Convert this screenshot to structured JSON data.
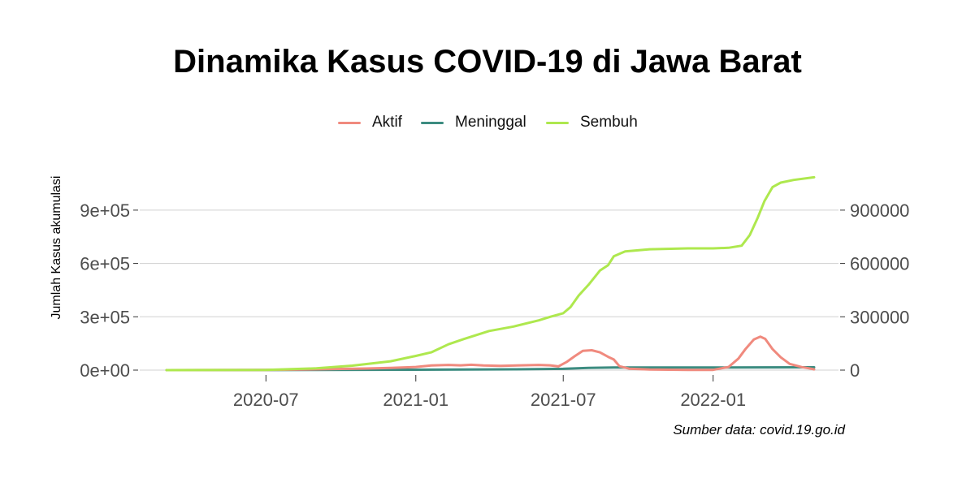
{
  "chart_data": {
    "type": "line",
    "title": "Dinamika Kasus COVID-19 di Jawa Barat",
    "ylabel": "Jumlah Kasus akumulasi",
    "caption": "Sumber data: covid.19.go.id",
    "x_ticks": [
      "2020-07",
      "2021-01",
      "2021-07",
      "2022-01"
    ],
    "x_range": [
      "2020-03-01",
      "2022-05-05"
    ],
    "y_left_ticks": [
      "0e+00",
      "3e+05",
      "6e+05",
      "9e+05"
    ],
    "y_right_ticks": [
      "0",
      "300000",
      "600000",
      "900000"
    ],
    "y_range": [
      0,
      1000000
    ],
    "grid": "horizontal",
    "legend_position": "top",
    "series": [
      {
        "name": "Aktif",
        "color": "#F08A7E",
        "points": [
          [
            "2020-03-01",
            0
          ],
          [
            "2020-07-01",
            1200
          ],
          [
            "2020-09-01",
            4500
          ],
          [
            "2020-11-01",
            9000
          ],
          [
            "2020-12-01",
            13000
          ],
          [
            "2021-01-01",
            18000
          ],
          [
            "2021-01-20",
            26000
          ],
          [
            "2021-02-10",
            29000
          ],
          [
            "2021-02-25",
            27000
          ],
          [
            "2021-03-10",
            30000
          ],
          [
            "2021-03-25",
            26000
          ],
          [
            "2021-04-15",
            24000
          ],
          [
            "2021-05-10",
            27000
          ],
          [
            "2021-06-01",
            29000
          ],
          [
            "2021-06-15",
            27000
          ],
          [
            "2021-06-25",
            21000
          ],
          [
            "2021-07-05",
            45000
          ],
          [
            "2021-07-15",
            78000
          ],
          [
            "2021-07-25",
            108000
          ],
          [
            "2021-08-05",
            112000
          ],
          [
            "2021-08-15",
            100000
          ],
          [
            "2021-08-25",
            75000
          ],
          [
            "2021-09-01",
            60000
          ],
          [
            "2021-09-08",
            22000
          ],
          [
            "2021-09-20",
            8000
          ],
          [
            "2021-10-15",
            3500
          ],
          [
            "2021-12-01",
            1500
          ],
          [
            "2022-01-01",
            1500
          ],
          [
            "2022-01-20",
            18000
          ],
          [
            "2022-02-01",
            65000
          ],
          [
            "2022-02-10",
            120000
          ],
          [
            "2022-02-20",
            172000
          ],
          [
            "2022-02-28",
            188000
          ],
          [
            "2022-03-06",
            176000
          ],
          [
            "2022-03-15",
            118000
          ],
          [
            "2022-03-25",
            72000
          ],
          [
            "2022-04-05",
            35000
          ],
          [
            "2022-04-20",
            17000
          ],
          [
            "2022-05-01",
            8000
          ],
          [
            "2022-05-05",
            4000
          ]
        ]
      },
      {
        "name": "Meninggal",
        "color": "#3C8C80",
        "points": [
          [
            "2020-03-01",
            0
          ],
          [
            "2020-09-01",
            700
          ],
          [
            "2021-01-01",
            2500
          ],
          [
            "2021-05-01",
            4500
          ],
          [
            "2021-07-01",
            7500
          ],
          [
            "2021-08-01",
            12500
          ],
          [
            "2021-09-01",
            14500
          ],
          [
            "2022-01-01",
            14800
          ],
          [
            "2022-03-01",
            15500
          ],
          [
            "2022-05-05",
            16000
          ]
        ]
      },
      {
        "name": "Sembuh",
        "color": "#AEE84E",
        "points": [
          [
            "2020-03-01",
            0
          ],
          [
            "2020-07-01",
            1000
          ],
          [
            "2020-09-01",
            10000
          ],
          [
            "2020-10-15",
            25000
          ],
          [
            "2020-12-01",
            50000
          ],
          [
            "2021-01-01",
            80000
          ],
          [
            "2021-01-20",
            100000
          ],
          [
            "2021-02-10",
            145000
          ],
          [
            "2021-03-01",
            175000
          ],
          [
            "2021-04-01",
            220000
          ],
          [
            "2021-05-01",
            245000
          ],
          [
            "2021-06-01",
            280000
          ],
          [
            "2021-06-15",
            300000
          ],
          [
            "2021-07-01",
            320000
          ],
          [
            "2021-07-10",
            355000
          ],
          [
            "2021-07-20",
            420000
          ],
          [
            "2021-08-01",
            480000
          ],
          [
            "2021-08-15",
            560000
          ],
          [
            "2021-08-25",
            590000
          ],
          [
            "2021-09-01",
            640000
          ],
          [
            "2021-09-15",
            668000
          ],
          [
            "2021-10-15",
            680000
          ],
          [
            "2021-12-01",
            685000
          ],
          [
            "2022-01-01",
            685000
          ],
          [
            "2022-01-20",
            688000
          ],
          [
            "2022-02-05",
            700000
          ],
          [
            "2022-02-15",
            760000
          ],
          [
            "2022-02-25",
            860000
          ],
          [
            "2022-03-05",
            950000
          ],
          [
            "2022-03-15",
            1030000
          ],
          [
            "2022-03-25",
            1055000
          ],
          [
            "2022-04-10",
            1070000
          ],
          [
            "2022-05-05",
            1085000
          ]
        ]
      }
    ]
  }
}
